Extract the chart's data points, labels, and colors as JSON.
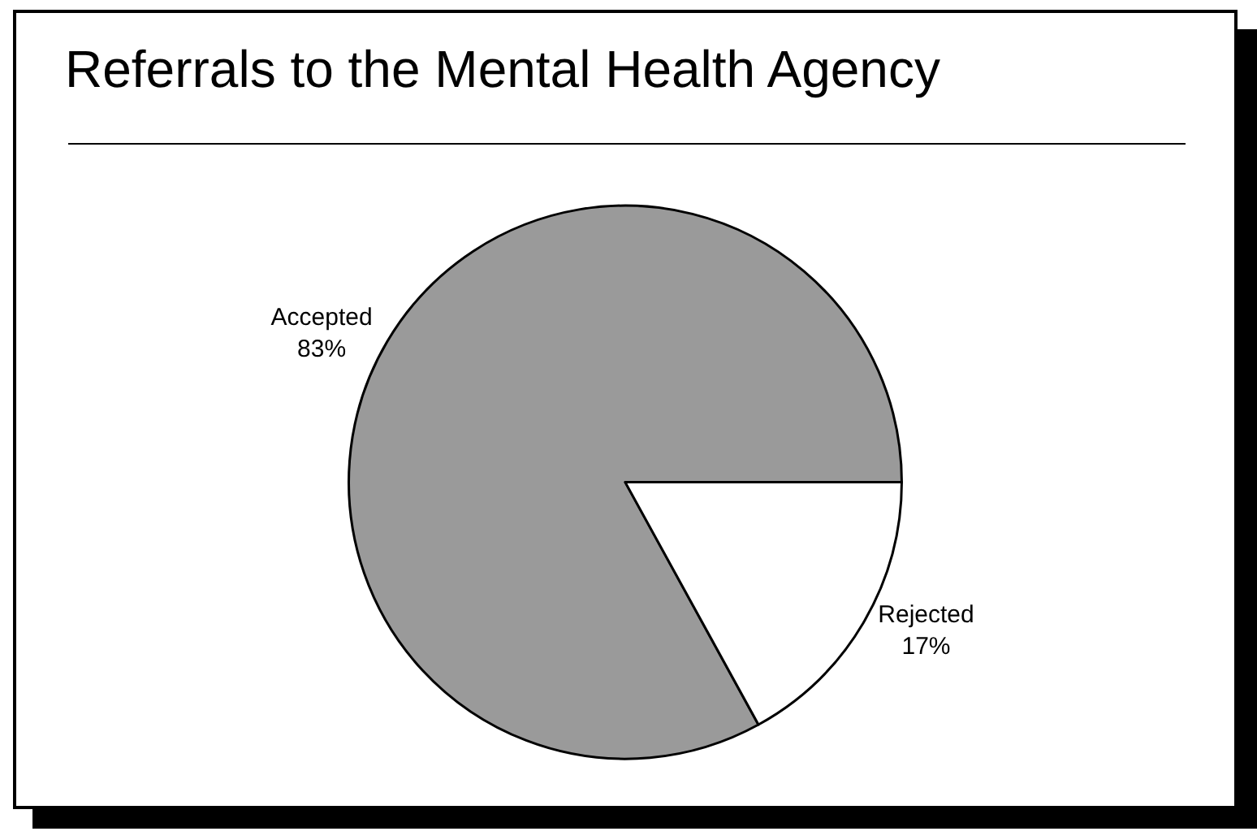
{
  "chart_data": {
    "type": "pie",
    "title": "Referrals to the Mental Health Agency",
    "categories": [
      "Accepted",
      "Rejected"
    ],
    "values": [
      83,
      17
    ],
    "value_labels": [
      "83%",
      "17%"
    ],
    "colors": [
      "#9a9a9a",
      "#ffffff"
    ],
    "legend": false
  }
}
